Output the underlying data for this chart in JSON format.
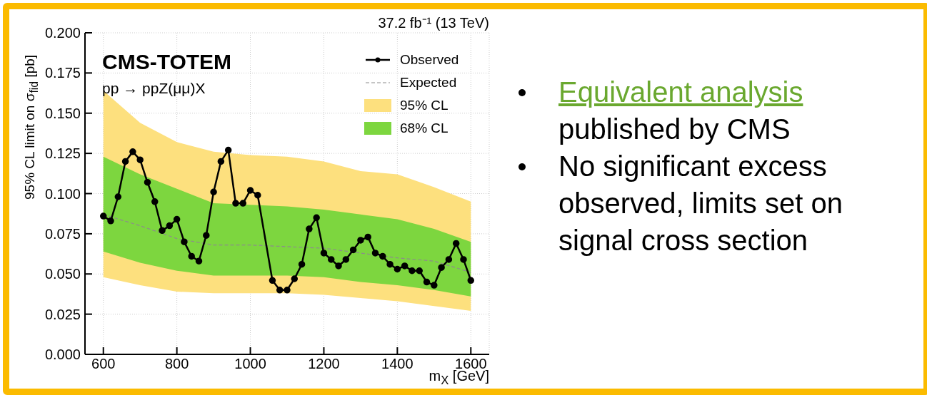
{
  "chart_data": {
    "type": "line",
    "xlabel": "m$_{X}$ [GeV]",
    "ylabel": "95% CL limit on σ$_{fid}$ [pb]",
    "annotations": [
      "37.2 fb⁻¹ (13 TeV)",
      "CMS-TOTEM",
      "pp → ppZ(μμ)X",
      "Equivalent analysis",
      "published by CMS",
      "No significant excess observed, limits set on signal cross section"
    ],
    "xlim": [
      550,
      1650
    ],
    "xticks": [
      600,
      800,
      1000,
      1200,
      1400,
      1600
    ],
    "ylim": [
      0,
      0.2
    ],
    "yticks": [
      {
        "value": 0,
        "label": "0.000"
      },
      {
        "value": 0.025,
        "label": "0.025"
      },
      {
        "value": 0.05,
        "label": "0.050"
      },
      {
        "value": 0.075,
        "label": "0.075"
      },
      {
        "value": 0.1,
        "label": "0.100"
      },
      {
        "value": 0.125,
        "label": "0.125"
      },
      {
        "value": 0.15,
        "label": "0.150"
      },
      {
        "value": 0.175,
        "label": "0.175"
      },
      {
        "value": 0.2,
        "label": "0.200"
      }
    ],
    "grid": true,
    "legend": "top right",
    "series": [
      {
        "name": "95% CL",
        "type": "area",
        "color": "#fde07e",
        "x": [
          600,
          700,
          800,
          900,
          1000,
          1100,
          1200,
          1300,
          1400,
          1500,
          1600
        ],
        "values": [
          null,
          null,
          null,
          null,
          null,
          null,
          null,
          null,
          null,
          null,
          null
        ],
        "lower": [
          0.048,
          0.043,
          0.039,
          0.038,
          0.038,
          0.038,
          0.037,
          0.035,
          0.033,
          0.03,
          0.027
        ],
        "upper": [
          0.164,
          0.144,
          0.132,
          0.126,
          0.124,
          0.123,
          0.12,
          0.114,
          0.112,
          0.104,
          0.095
        ]
      },
      {
        "name": "68% CL",
        "type": "area",
        "color": "#7dd63f",
        "x": [
          600,
          700,
          800,
          900,
          1000,
          1100,
          1200,
          1300,
          1400,
          1500,
          1600
        ],
        "values": [
          null,
          null,
          null,
          null,
          null,
          null,
          null,
          null,
          null,
          null,
          null
        ],
        "lower": [
          0.064,
          0.057,
          0.052,
          0.049,
          0.049,
          0.049,
          0.048,
          0.045,
          0.043,
          0.04,
          0.036
        ],
        "upper": [
          0.123,
          0.112,
          0.103,
          0.094,
          0.093,
          0.092,
          0.09,
          0.087,
          0.084,
          0.078,
          0.07
        ]
      },
      {
        "name": "Expected",
        "color": "#8c8c8c",
        "line_style": "dashed",
        "marker": "none",
        "x": [
          600,
          700,
          800,
          900,
          1000,
          1100,
          1200,
          1300,
          1400,
          1500,
          1600
        ],
        "values": [
          0.087,
          0.08,
          0.072,
          0.068,
          0.068,
          0.067,
          0.066,
          0.063,
          0.06,
          0.058,
          0.051
        ]
      },
      {
        "name": "Observed",
        "color": "#000000",
        "line_style": "solid",
        "marker": "circle",
        "x": [
          600,
          620,
          640,
          660,
          680,
          700,
          720,
          740,
          760,
          780,
          800,
          820,
          840,
          860,
          880,
          900,
          920,
          940,
          960,
          980,
          1000,
          1020,
          1060,
          1080,
          1100,
          1120,
          1140,
          1160,
          1180,
          1200,
          1220,
          1240,
          1260,
          1280,
          1300,
          1320,
          1340,
          1360,
          1380,
          1400,
          1420,
          1440,
          1460,
          1480,
          1500,
          1520,
          1540,
          1560,
          1580,
          1600
        ],
        "values": [
          0.086,
          0.083,
          0.098,
          0.12,
          0.126,
          0.121,
          0.107,
          0.095,
          0.077,
          0.08,
          0.084,
          0.07,
          0.061,
          0.058,
          0.074,
          0.101,
          0.12,
          0.127,
          0.094,
          0.094,
          0.102,
          0.099,
          0.046,
          0.04,
          0.04,
          0.047,
          0.056,
          0.078,
          0.085,
          0.063,
          0.059,
          0.055,
          0.059,
          0.065,
          0.071,
          0.073,
          0.063,
          0.061,
          0.056,
          0.053,
          0.055,
          0.052,
          0.052,
          0.045,
          0.043,
          0.054,
          0.059,
          0.069,
          0.059,
          0.046
        ]
      }
    ]
  }
}
